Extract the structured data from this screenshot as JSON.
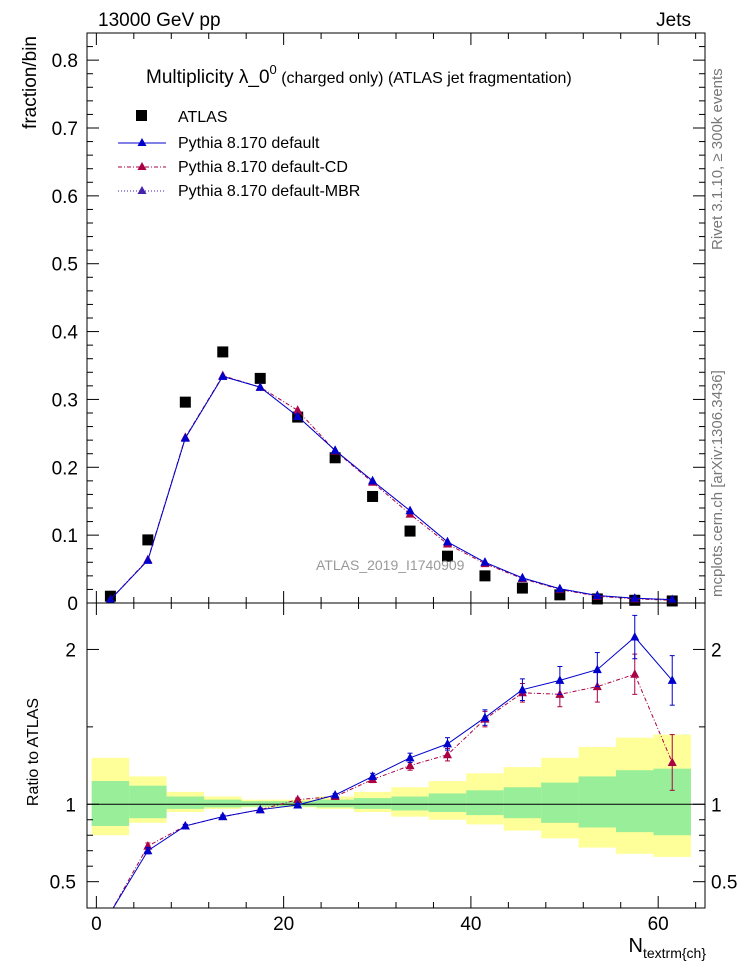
{
  "header": {
    "left": "13000 GeV pp",
    "right": "Jets"
  },
  "side_text": {
    "top": "Rivet 3.1.10, ≥ 300k events",
    "bottom": "mcplots.cern.ch [arXiv:1306.3436]"
  },
  "chart_data": [
    {
      "type": "scatter",
      "title_main": "Multiplicity  λ_0",
      "title_sup": "0",
      "title_rest": " (charged only) (ATLAS jet fragmentation)",
      "ylabel": "fraction/bin",
      "watermark": "ATLAS_2019_I1740909",
      "xlim": [
        -1,
        65
      ],
      "ylim": [
        0,
        0.84
      ],
      "yticks": [
        0.1,
        0.2,
        0.3,
        0.4,
        0.5,
        0.6,
        0.7,
        0.8
      ],
      "ytick_labels": [
        "0.1",
        "0.2",
        "0.3",
        "0.4",
        "0.5",
        "0.6",
        "0.7",
        "0.8"
      ],
      "y_zero_label": "0",
      "x": [
        1.5,
        5.5,
        9.5,
        13.5,
        17.5,
        21.5,
        25.5,
        29.5,
        33.5,
        37.5,
        41.5,
        45.5,
        49.5,
        53.5,
        57.5,
        61.5
      ],
      "series": [
        {
          "name": "ATLAS",
          "color": "#000000",
          "values": [
            0.01,
            0.093,
            0.296,
            0.37,
            0.331,
            0.274,
            0.214,
            0.157,
            0.106,
            0.069,
            0.04,
            0.022,
            0.012,
            0.006,
            0.004,
            0.003
          ]
        },
        {
          "name": "Pythia 8.170 default",
          "color": "#0000cc",
          "values": [
            0.005,
            0.063,
            0.243,
            0.334,
            0.318,
            0.275,
            0.225,
            0.18,
            0.136,
            0.09,
            0.06,
            0.037,
            0.021,
            0.011,
            0.007,
            0.005
          ]
        },
        {
          "name": "Pythia 8.170 default-CD",
          "color": "#aa0044",
          "values": [
            0.005,
            0.064,
            0.244,
            0.335,
            0.318,
            0.284,
            0.224,
            0.178,
            0.131,
            0.087,
            0.058,
            0.036,
            0.02,
            0.01,
            0.006,
            0.004
          ]
        },
        {
          "name": "Pythia 8.170 default-MBR",
          "color": "#4422aa",
          "values": [
            0.005,
            0.063,
            0.243,
            0.334,
            0.318,
            0.275,
            0.225,
            0.18,
            0.136,
            0.09,
            0.06,
            0.037,
            0.021,
            0.011,
            0.007,
            0.005
          ]
        }
      ]
    },
    {
      "type": "scatter",
      "ylabel": "Ratio to ATLAS",
      "xlabel_main": "N",
      "xlabel_sub": "textrm{ch}",
      "xlim": [
        -1,
        65
      ],
      "ylim": [
        0.33,
        2.3
      ],
      "yticks": [
        0.5,
        1,
        2
      ],
      "ytick_labels": [
        "0.5",
        "1",
        "2"
      ],
      "xticks": [
        0,
        20,
        40,
        60
      ],
      "xtick_labels": [
        "0",
        "20",
        "40",
        "60"
      ],
      "bin_edges": [
        -0.5,
        3.5,
        7.5,
        11.5,
        15.5,
        19.5,
        23.5,
        27.5,
        31.5,
        35.5,
        39.5,
        43.5,
        47.5,
        51.5,
        55.5,
        59.5,
        63.5
      ],
      "band_inner": [
        [
          0.86,
          1.15
        ],
        [
          0.91,
          1.12
        ],
        [
          0.97,
          1.05
        ],
        [
          0.98,
          1.03
        ],
        [
          0.985,
          1.02
        ],
        [
          0.985,
          1.02
        ],
        [
          0.98,
          1.03
        ],
        [
          0.97,
          1.04
        ],
        [
          0.96,
          1.05
        ],
        [
          0.95,
          1.07
        ],
        [
          0.93,
          1.09
        ],
        [
          0.91,
          1.11
        ],
        [
          0.88,
          1.14
        ],
        [
          0.85,
          1.18
        ],
        [
          0.82,
          1.22
        ],
        [
          0.8,
          1.23
        ]
      ],
      "band_outer": [
        [
          0.8,
          1.3
        ],
        [
          0.88,
          1.18
        ],
        [
          0.95,
          1.08
        ],
        [
          0.97,
          1.05
        ],
        [
          0.98,
          1.03
        ],
        [
          0.98,
          1.03
        ],
        [
          0.97,
          1.05
        ],
        [
          0.95,
          1.08
        ],
        [
          0.92,
          1.11
        ],
        [
          0.9,
          1.15
        ],
        [
          0.87,
          1.2
        ],
        [
          0.83,
          1.24
        ],
        [
          0.78,
          1.3
        ],
        [
          0.72,
          1.37
        ],
        [
          0.68,
          1.43
        ],
        [
          0.66,
          1.45
        ]
      ],
      "x": [
        1.5,
        5.5,
        9.5,
        13.5,
        17.5,
        21.5,
        25.5,
        29.5,
        33.5,
        37.5,
        41.5,
        45.5,
        49.5,
        53.5,
        57.5,
        61.5
      ],
      "series": [
        {
          "name": "Pythia 8.170 default",
          "color": "#0000cc",
          "values": [
            0.3,
            0.7,
            0.86,
            0.92,
            0.965,
            0.995,
            1.06,
            1.18,
            1.3,
            1.39,
            1.56,
            1.74,
            1.8,
            1.87,
            2.08,
            1.8
          ],
          "err": [
            0,
            0.02,
            0.01,
            0.01,
            0.01,
            0.01,
            0.01,
            0.02,
            0.03,
            0.04,
            0.05,
            0.07,
            0.09,
            0.11,
            0.14,
            0.16
          ]
        },
        {
          "name": "Pythia 8.170 default-CD",
          "color": "#aa0044",
          "values": [
            0.3,
            0.73,
            0.86,
            0.92,
            0.965,
            1.03,
            1.05,
            1.16,
            1.25,
            1.32,
            1.55,
            1.72,
            1.71,
            1.76,
            1.84,
            1.27
          ],
          "err": [
            0,
            0.02,
            0.01,
            0.01,
            0.01,
            0.01,
            0.01,
            0.02,
            0.03,
            0.04,
            0.05,
            0.06,
            0.08,
            0.1,
            0.13,
            0.18
          ]
        }
      ]
    }
  ]
}
